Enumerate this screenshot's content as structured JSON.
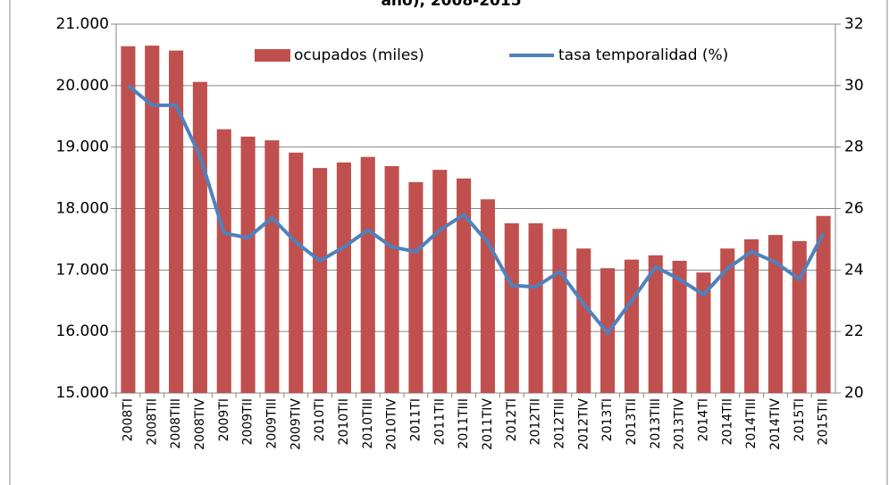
{
  "chart_data": {
    "type": "bar-line",
    "title": "año), 2008-2015",
    "categories": [
      "2008TI",
      "2008TII",
      "2008TIII",
      "2008TIV",
      "2009TI",
      "2009TII",
      "2009TIII",
      "2009TIV",
      "2010TI",
      "2010TII",
      "2010TIII",
      "2010TIV",
      "2011TI",
      "2011TII",
      "2011TIII",
      "2011TIV",
      "2012TI",
      "2012TII",
      "2012TIII",
      "2012TIV",
      "2013TI",
      "2013TII",
      "2013TIII",
      "2013TIV",
      "2014TI",
      "2014TII",
      "2014TIII",
      "2014TIV",
      "2015TI",
      "2015TII"
    ],
    "series": [
      {
        "name": "ocupados (miles)",
        "type": "bar",
        "color": "#c0504d",
        "values": [
          20640,
          20650,
          20570,
          20060,
          19290,
          19170,
          19110,
          18910,
          18660,
          18750,
          18840,
          18690,
          18430,
          18630,
          18490,
          18150,
          17760,
          17760,
          17670,
          17350,
          17030,
          17170,
          17240,
          17150,
          16960,
          17350,
          17500,
          17570,
          17470,
          17880
        ]
      },
      {
        "name": "tasa temporalidad (%)",
        "type": "line",
        "axis": "y2",
        "color": "#4f81bd",
        "values": [
          30.0,
          29.36,
          29.36,
          27.7,
          25.2,
          25.05,
          25.7,
          24.9,
          24.3,
          24.75,
          25.3,
          24.75,
          24.6,
          25.3,
          25.8,
          24.9,
          23.5,
          23.45,
          23.95,
          22.9,
          21.95,
          23.0,
          24.1,
          23.7,
          23.2,
          24.05,
          24.6,
          24.25,
          23.7,
          25.2
        ]
      }
    ],
    "ylim": [
      15000,
      21000
    ],
    "yticks": [
      {
        "value": 15000,
        "label": "15.000"
      },
      {
        "value": 16000,
        "label": "16.000"
      },
      {
        "value": 17000,
        "label": "17.000"
      },
      {
        "value": 18000,
        "label": "18.000"
      },
      {
        "value": 19000,
        "label": "19.000"
      },
      {
        "value": 20000,
        "label": "20.000"
      },
      {
        "value": 21000,
        "label": "21.000"
      }
    ],
    "y2lim": [
      20,
      32
    ],
    "y2ticks": [
      20,
      22,
      24,
      26,
      28,
      30,
      32
    ],
    "grid": true,
    "legend": "top"
  }
}
